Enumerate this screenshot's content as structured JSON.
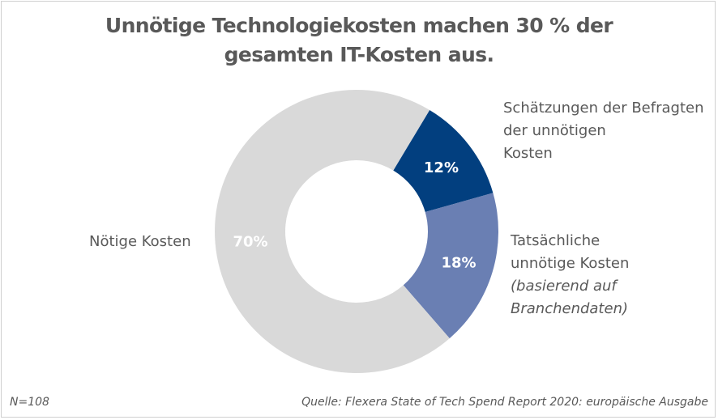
{
  "chart_data": {
    "type": "pie",
    "subtype": "donut",
    "title": "Unnötige Technologiekosten machen 30 % der gesamten IT-Kosten aus.",
    "slices": [
      {
        "label": "Schätzungen der Befragten der unnötigen Kosten",
        "value": 12,
        "display": "12%",
        "color": "#023f7f"
      },
      {
        "label": "Tatsächliche unnötige Kosten (basierend auf Branchendaten)",
        "value": 18,
        "display": "18%",
        "color": "#6a7fb3"
      },
      {
        "label": "Nötige Kosten",
        "value": 70,
        "display": "70%",
        "color": "#d9d9d9"
      }
    ]
  },
  "title_line1": "Unnötige Technologiekosten machen 30 % der",
  "title_line2": "gesamten IT-Kosten aus.",
  "labels": {
    "est_1": "Schätzungen der Befragten",
    "est_2": "der unnötigen",
    "est_3": "Kosten",
    "act_1": "Tatsächliche",
    "act_2": "unnötige Kosten",
    "act_3": "(basierend  auf",
    "act_4": "Branchendaten)",
    "needed": "Nötige Kosten"
  },
  "footer": {
    "n": "N=108",
    "source": "Quelle: Flexera State of Tech Spend Report 2020: europäische Ausgabe"
  }
}
